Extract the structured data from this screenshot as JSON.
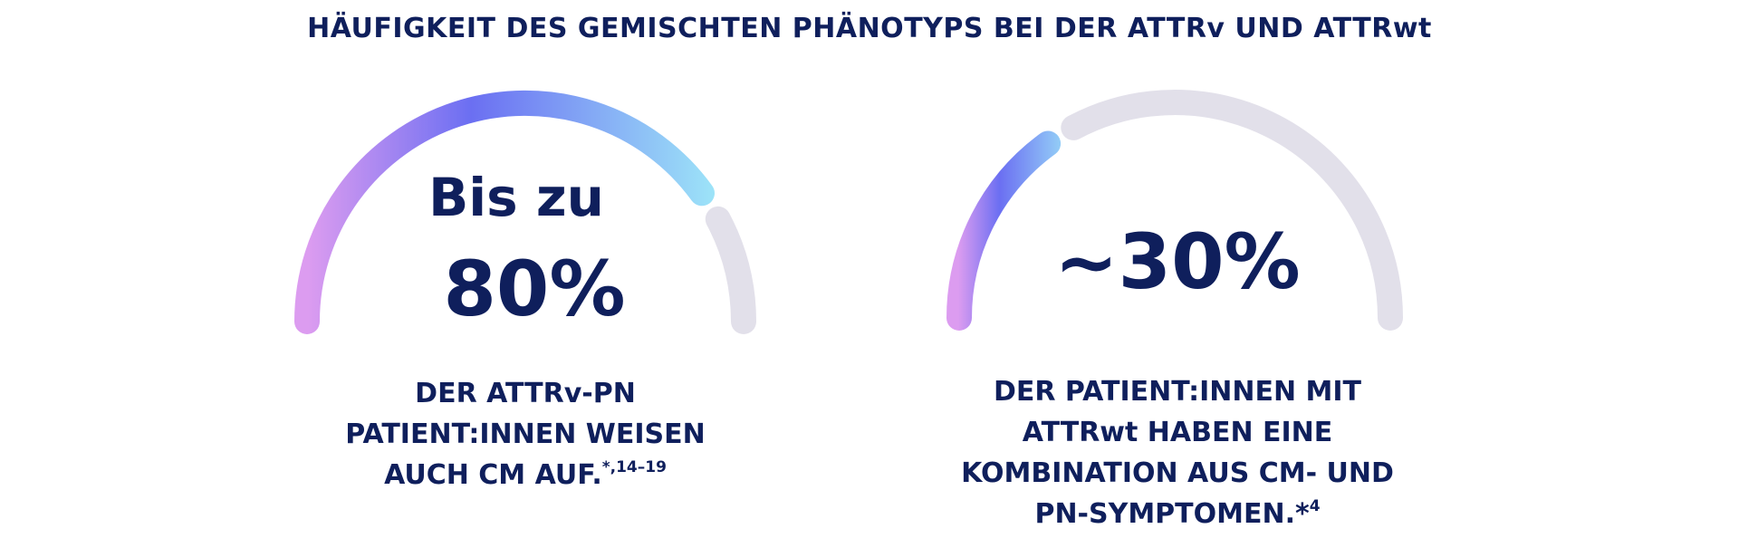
{
  "title": "HÄUFIGKEIT DES GEMISCHTEN PHÄNOTYPS BEI DER ATTRv UND ATTRwt",
  "colors": {
    "text": "#0f1f5c",
    "track": "#e2e0ea",
    "gradient": [
      "#dc9cf0",
      "#6b6ff2",
      "#9de4f8"
    ]
  },
  "gauges": [
    {
      "prefix": "Bis zu",
      "value_label": "80%",
      "fill_fraction": 0.8,
      "caption_lines": [
        "DER ATTRv-PN",
        "PATIENT:INNEN WEISEN",
        "AUCH CM AUF."
      ],
      "caption_superscript": "*,14–19"
    },
    {
      "prefix": "",
      "value_label": "~30%",
      "fill_fraction": 0.3,
      "caption_lines": [
        "DER PATIENT:INNEN MIT",
        "ATTRwt HABEN EINE",
        "KOMBINATION AUS CM- UND",
        "PN-SYMPTOMEN.*"
      ],
      "caption_superscript": "4"
    }
  ]
}
